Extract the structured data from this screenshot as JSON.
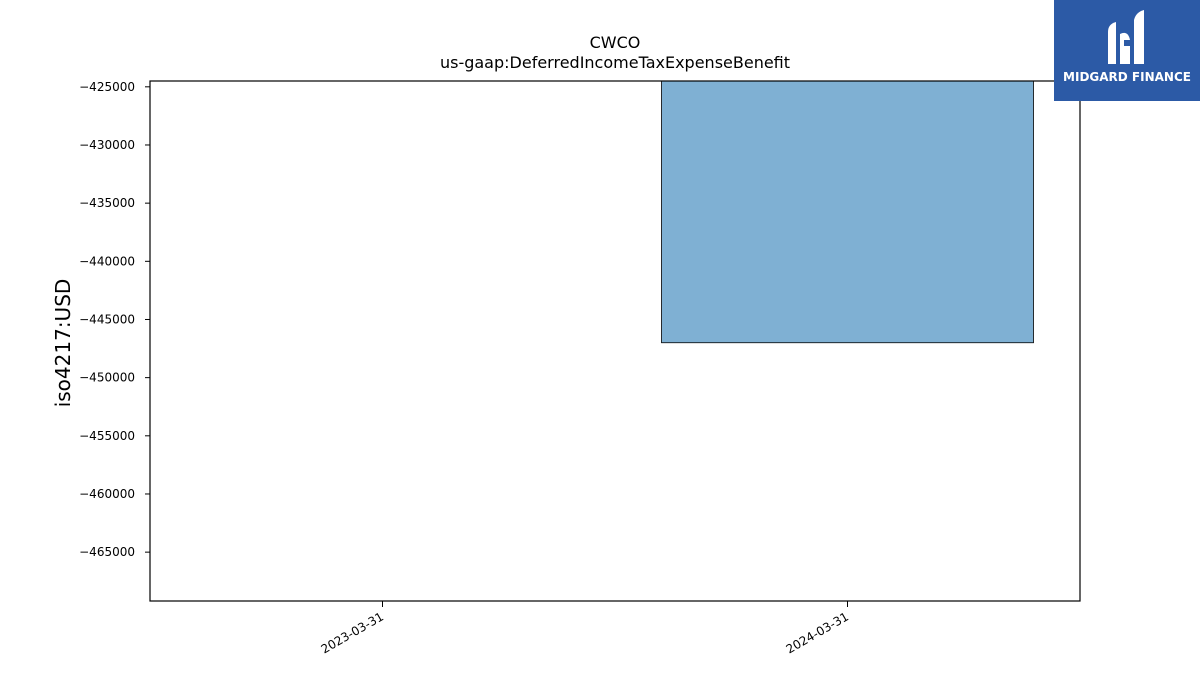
{
  "brand": {
    "name": "MIDGARD FINANCE",
    "background_color": "#2c5aa6"
  },
  "chart_data": {
    "type": "bar",
    "title": "CWCO",
    "subtitle": "us-gaap:DeferredIncomeTaxExpenseBenefit",
    "xlabel": "",
    "ylabel": "iso4217:USD",
    "categories": [
      "2023-03-31",
      "2024-03-31"
    ],
    "values": [
      null,
      -447000
    ],
    "ylim": [
      -469200,
      -424500
    ],
    "yticks": [
      -425000,
      -430000,
      -435000,
      -440000,
      -445000,
      -450000,
      -455000,
      -460000,
      -465000
    ],
    "bar_color": "#7fb0d3",
    "bar_edge_color": "#000000",
    "grid": false,
    "legend": "none"
  }
}
